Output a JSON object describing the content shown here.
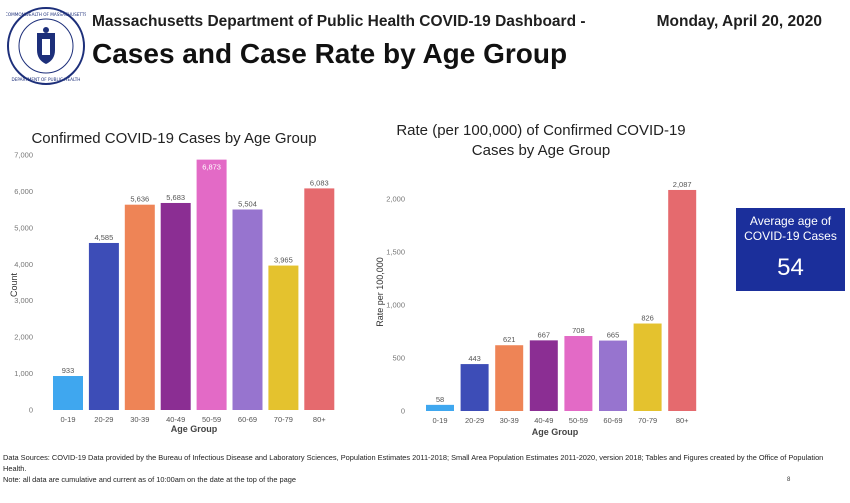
{
  "header": {
    "department": "Massachusetts Department of Public Health COVID-19 Dashboard -",
    "date": "Monday, April 20, 2020",
    "title": "Cases and Case Rate by Age Group"
  },
  "colors": {
    "bars": [
      "#3fa7ef",
      "#3d4db7",
      "#ee8456",
      "#8b2e93",
      "#e36ac6",
      "#9774cf",
      "#e4c22e",
      "#e56a6e"
    ],
    "avg_box": "#1b2f9b"
  },
  "chart_data": [
    {
      "type": "bar",
      "title": "Confirmed COVID-19 Cases by Age Group",
      "xlabel": "Age Group",
      "ylabel": "Count",
      "categories": [
        "0-19",
        "20-29",
        "30-39",
        "40-49",
        "50-59",
        "60-69",
        "70-79",
        "80+"
      ],
      "values": [
        933,
        4585,
        5636,
        5683,
        6873,
        5504,
        3965,
        6083
      ],
      "data_labels": [
        "933",
        "4,585",
        "5,636",
        "5,683",
        "6,873",
        "5,504",
        "3,965",
        "6,083"
      ],
      "yticks": [
        0,
        1000,
        2000,
        3000,
        4000,
        5000,
        6000,
        7000
      ],
      "ytick_labels": [
        "0",
        "1,000",
        "2,000",
        "3,000",
        "4,000",
        "5,000",
        "6,000",
        "7,000"
      ],
      "ylim": [
        0,
        7000
      ],
      "grid": false
    },
    {
      "type": "bar",
      "title": "Rate (per 100,000) of Confirmed COVID-19 Cases by Age Group",
      "xlabel": "Age Group",
      "ylabel": "Rate per 100,000",
      "categories": [
        "0-19",
        "20-29",
        "30-39",
        "40-49",
        "50-59",
        "60-69",
        "70-79",
        "80+"
      ],
      "values": [
        58,
        443,
        621,
        667,
        708,
        665,
        826,
        2087
      ],
      "data_labels": [
        "58",
        "443",
        "621",
        "667",
        "708",
        "665",
        "826",
        "2,087"
      ],
      "yticks": [
        0,
        500,
        1000,
        1500,
        2000
      ],
      "ytick_labels": [
        "0",
        "500",
        "1,000",
        "1,500",
        "2,000"
      ],
      "ylim": [
        0,
        2200
      ],
      "grid": false
    }
  ],
  "average_age": {
    "label_line1": "Average age of",
    "label_line2": "COVID-19 Cases",
    "value": "54"
  },
  "seal": {
    "text_top": "COMMONWEALTH OF MASSACHUSETTS",
    "text_bottom": "DEPARTMENT OF PUBLIC HEALTH"
  },
  "footer": {
    "line1": "Data Sources: COVID-19 Data provided by the Bureau of Infectious Disease and Laboratory Sciences, Population Estimates 2011-2018; Small Area Population Estimates 2011-2020, version 2018; Tables and Figures created by the Office of Population Health.",
    "line2": "Note: all data are cumulative and current as of 10:00am on the date at the top of the page",
    "page_number": "8"
  }
}
